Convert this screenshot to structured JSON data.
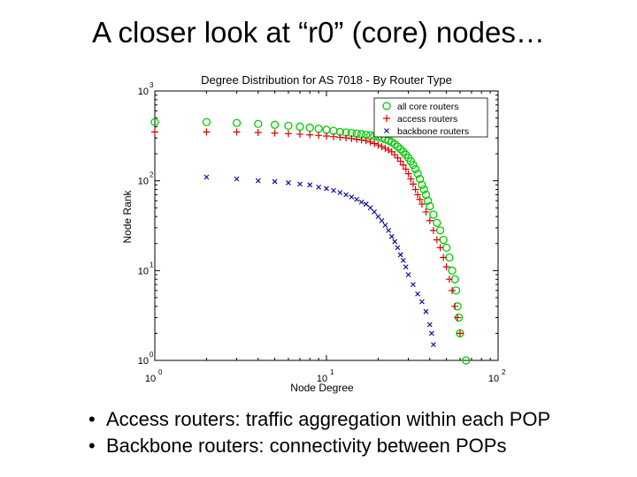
{
  "slide": {
    "title": "A closer look at “r0” (core) nodes…",
    "bullets": [
      "Access routers: traffic aggregation within each POP",
      "Backbone routers: connectivity between POPs"
    ]
  },
  "chart_data": {
    "type": "scatter",
    "title": "Degree Distribution for AS 7018 - By Router Type",
    "xlabel": "Node Degree",
    "ylabel": "Node Rank",
    "xscale": "log",
    "yscale": "log",
    "xlim": [
      1,
      100
    ],
    "ylim": [
      1,
      1000
    ],
    "x_ticks": [
      {
        "value": 1,
        "base": "10",
        "exp": "0"
      },
      {
        "value": 10,
        "base": "10",
        "exp": "1"
      },
      {
        "value": 100,
        "base": "10",
        "exp": "2"
      }
    ],
    "y_ticks": [
      {
        "value": 1,
        "base": "10",
        "exp": "0"
      },
      {
        "value": 10,
        "base": "10",
        "exp": "1"
      },
      {
        "value": 100,
        "base": "10",
        "exp": "2"
      },
      {
        "value": 1000,
        "base": "10",
        "exp": "3"
      }
    ],
    "legend_position": "top-right",
    "series": [
      {
        "name": "all core routers",
        "marker": "circle",
        "color": "#00cc00",
        "points": [
          [
            1.0,
            450
          ],
          [
            2.0,
            450
          ],
          [
            3.0,
            440
          ],
          [
            4.0,
            430
          ],
          [
            5.0,
            420
          ],
          [
            6.0,
            410
          ],
          [
            7.0,
            400
          ],
          [
            8.0,
            390
          ],
          [
            9.0,
            380
          ],
          [
            10.0,
            370
          ],
          [
            11.0,
            360
          ],
          [
            12.0,
            350
          ],
          [
            13.0,
            345
          ],
          [
            14.0,
            340
          ],
          [
            15.0,
            335
          ],
          [
            16.0,
            330
          ],
          [
            17.0,
            325
          ],
          [
            18.0,
            320
          ],
          [
            19.0,
            315
          ],
          [
            20.0,
            310
          ],
          [
            21.0,
            300
          ],
          [
            22.0,
            290
          ],
          [
            23.0,
            280
          ],
          [
            24.0,
            270
          ],
          [
            25.0,
            255
          ],
          [
            26.0,
            240
          ],
          [
            27.0,
            225
          ],
          [
            28.0,
            210
          ],
          [
            29.0,
            195
          ],
          [
            30.0,
            180
          ],
          [
            31.0,
            165
          ],
          [
            32.0,
            150
          ],
          [
            33.0,
            135
          ],
          [
            34.0,
            120
          ],
          [
            35.0,
            105
          ],
          [
            36.0,
            90
          ],
          [
            37.0,
            80
          ],
          [
            38.0,
            70
          ],
          [
            39.0,
            60
          ],
          [
            40.0,
            52
          ],
          [
            42.0,
            42
          ],
          [
            44.0,
            34
          ],
          [
            46.0,
            28
          ],
          [
            48.0,
            22
          ],
          [
            50.0,
            18
          ],
          [
            52.0,
            14
          ],
          [
            54.0,
            10
          ],
          [
            56.0,
            8
          ],
          [
            57.0,
            6
          ],
          [
            58.0,
            4
          ],
          [
            59.0,
            3
          ],
          [
            60.0,
            2
          ],
          [
            65.0,
            1
          ]
        ]
      },
      {
        "name": "access routers",
        "marker": "plus",
        "color": "#dd0000",
        "points": [
          [
            1.0,
            350
          ],
          [
            2.0,
            350
          ],
          [
            3.0,
            350
          ],
          [
            4.0,
            345
          ],
          [
            5.0,
            340
          ],
          [
            6.0,
            335
          ],
          [
            7.0,
            330
          ],
          [
            8.0,
            325
          ],
          [
            9.0,
            320
          ],
          [
            10.0,
            315
          ],
          [
            11.0,
            310
          ],
          [
            12.0,
            305
          ],
          [
            13.0,
            300
          ],
          [
            14.0,
            295
          ],
          [
            15.0,
            290
          ],
          [
            16.0,
            285
          ],
          [
            17.0,
            280
          ],
          [
            18.0,
            270
          ],
          [
            19.0,
            260
          ],
          [
            20.0,
            250
          ],
          [
            21.0,
            240
          ],
          [
            22.0,
            230
          ],
          [
            23.0,
            220
          ],
          [
            24.0,
            210
          ],
          [
            25.0,
            195
          ],
          [
            26.0,
            180
          ],
          [
            27.0,
            165
          ],
          [
            28.0,
            150
          ],
          [
            29.0,
            135
          ],
          [
            30.0,
            120
          ],
          [
            31.0,
            105
          ],
          [
            32.0,
            92
          ],
          [
            33.0,
            80
          ],
          [
            34.0,
            70
          ],
          [
            35.0,
            62
          ],
          [
            36.0,
            55
          ],
          [
            38.0,
            45
          ],
          [
            40.0,
            36
          ],
          [
            42.0,
            28
          ],
          [
            44.0,
            22
          ],
          [
            46.0,
            18
          ],
          [
            48.0,
            14
          ],
          [
            50.0,
            11
          ],
          [
            52.0,
            8
          ],
          [
            54.0,
            6
          ],
          [
            56.0,
            4
          ],
          [
            58.0,
            3
          ],
          [
            60.0,
            2
          ]
        ]
      },
      {
        "name": "backbone routers",
        "marker": "x",
        "color": "#000099",
        "points": [
          [
            2.0,
            110
          ],
          [
            3.0,
            105
          ],
          [
            4.0,
            100
          ],
          [
            5.0,
            98
          ],
          [
            6.0,
            95
          ],
          [
            7.0,
            92
          ],
          [
            8.0,
            90
          ],
          [
            9.0,
            85
          ],
          [
            10.0,
            82
          ],
          [
            11.0,
            78
          ],
          [
            12.0,
            74
          ],
          [
            13.0,
            70
          ],
          [
            14.0,
            66
          ],
          [
            15.0,
            62
          ],
          [
            16.0,
            58
          ],
          [
            17.0,
            55
          ],
          [
            18.0,
            50
          ],
          [
            19.0,
            45
          ],
          [
            20.0,
            40
          ],
          [
            21.0,
            36
          ],
          [
            22.0,
            32
          ],
          [
            23.0,
            28
          ],
          [
            24.0,
            24
          ],
          [
            25.0,
            21
          ],
          [
            26.0,
            18
          ],
          [
            27.0,
            15
          ],
          [
            28.0,
            13
          ],
          [
            29.0,
            11
          ],
          [
            30.0,
            9
          ],
          [
            32.0,
            7
          ],
          [
            34.0,
            5.5
          ],
          [
            36.0,
            4.5
          ],
          [
            38.0,
            3.5
          ],
          [
            40.0,
            2.5
          ],
          [
            41.0,
            2.0
          ],
          [
            42.0,
            1.5
          ]
        ]
      }
    ]
  }
}
